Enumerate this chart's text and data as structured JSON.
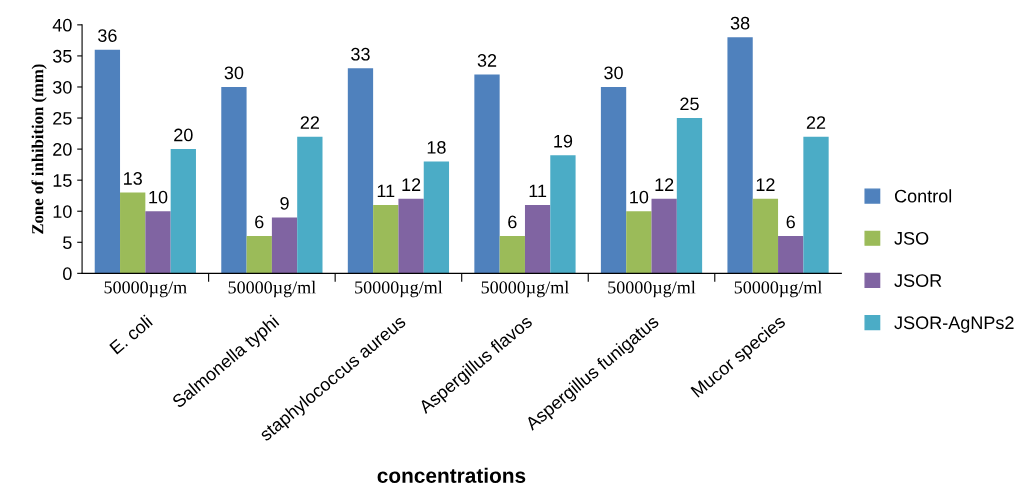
{
  "chart_data": {
    "type": "bar",
    "xlabel": "concentrations",
    "ylabel": "Zone of inhibition (mm)",
    "categories": [
      "E. coli",
      "Salmonella typhi",
      "staphylococcus aureus",
      "Aspergillus flavos",
      "Aspergillus funigatus",
      "Mucor species"
    ],
    "series": [
      {
        "name": "Control",
        "color": "#4f81bd",
        "values": [
          36,
          30,
          33,
          32,
          30,
          38
        ]
      },
      {
        "name": "JSO",
        "color": "#9bbb59",
        "values": [
          13,
          6,
          11,
          6,
          10,
          12
        ]
      },
      {
        "name": "JSOR",
        "color": "#8064a2",
        "values": [
          10,
          9,
          12,
          11,
          12,
          6
        ]
      },
      {
        "name": "JSOR-AgNPs2",
        "color": "#4bacc6",
        "values": [
          20,
          22,
          18,
          19,
          25,
          22
        ]
      }
    ],
    "ylim": [
      0,
      40
    ],
    "yticks": [
      0,
      5,
      10,
      15,
      20,
      25,
      30,
      35,
      40
    ],
    "grid": false,
    "legend": "right",
    "data_labels": true,
    "annotations": [
      "50000µg/m",
      "50000µg/ml",
      "50000µg/ml",
      "50000µg/ml",
      "50000µg/ml",
      "50000µg/ml"
    ]
  }
}
